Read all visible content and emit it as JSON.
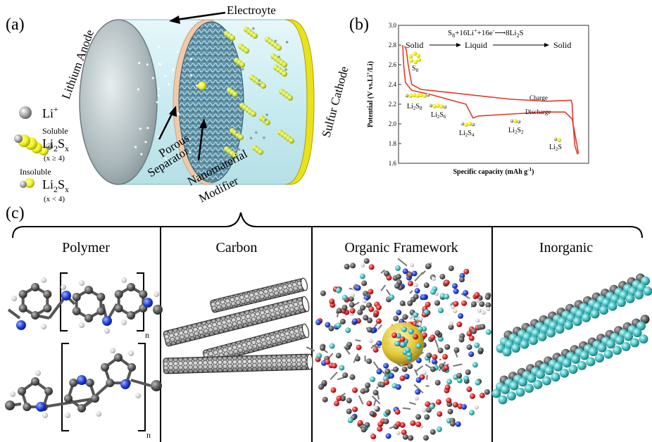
{
  "panel_a": {
    "label": "(a)",
    "electrolyte_label": "Electroyte",
    "anode_label": "Lithium Anode",
    "cathode_label": "Sulfur Cathode",
    "separator_label": [
      "Porous",
      "Separator"
    ],
    "modifier_label": [
      "Nanomaterial",
      "Modifier"
    ],
    "legend": {
      "li_ion": "Li",
      "li_ion_sup": "+",
      "soluble_title": "Soluble",
      "soluble_formula": "Li",
      "soluble_sub": "2",
      "soluble_s": "S",
      "soluble_x": "x",
      "soluble_cond": "(x ≥ 4)",
      "insoluble_title": "Insoluble",
      "insoluble_formula": "Li",
      "insoluble_sub": "2",
      "insoluble_s": "S",
      "insoluble_x": "x",
      "insoluble_cond": "(x < 4)"
    },
    "colors": {
      "electrolyte": "#cdeef2",
      "sulfur": "#c8d92b",
      "cathode": "#e9e21a",
      "li": "#9a9a9a"
    }
  },
  "panel_b": {
    "label": "(b)",
    "reaction": {
      "s": "S",
      "s_sub": "8",
      "mid": "+16Li",
      "li_sup": "+",
      "e": "+16e",
      "e_sup": "-",
      "arrow": "⟶",
      "product": "8Li",
      "prod_sub": "2",
      "prod_s": "S"
    },
    "phases": [
      "Solid",
      "Liquid",
      "Solid"
    ],
    "species": [
      {
        "id": "s8",
        "text": "S",
        "sub": "8"
      },
      {
        "id": "li2s8",
        "text": "Li",
        "sub": "2",
        "text2": "S",
        "sub2": "8"
      },
      {
        "id": "li2s6",
        "text": "Li",
        "sub": "2",
        "text2": "S",
        "sub2": "6"
      },
      {
        "id": "li2s4",
        "text": "Li",
        "sub": "2",
        "text2": "S",
        "sub2": "4"
      },
      {
        "id": "li2s2",
        "text": "Li",
        "sub": "2",
        "text2": "S",
        "sub2": "2"
      },
      {
        "id": "li2s",
        "text": "Li",
        "sub": "2",
        "text2": "S",
        "sub2": ""
      }
    ],
    "chart_data": {
      "type": "line",
      "ylabel_main": "Potential (V vs.Li",
      "ylabel_sup": "+",
      "ylabel_end": "/Li)",
      "xlabel_main": "Specific capacity (mAh g",
      "xlabel_sup": "-1",
      "xlabel_end": ")",
      "ylim": [
        1.6,
        3.0
      ],
      "yticks": [
        "3.0",
        "2.8",
        "2.6",
        "2.4",
        "2.2",
        "2.0",
        "1.8",
        "1.6"
      ],
      "xlim": [
        0,
        1
      ],
      "series": [
        {
          "name": "Charge",
          "color": "#e03a2a",
          "points": [
            [
              0.97,
              1.69
            ],
            [
              0.955,
              1.78
            ],
            [
              0.945,
              2.0
            ],
            [
              0.94,
              2.2
            ],
            [
              0.935,
              2.24
            ],
            [
              0.8,
              2.23
            ],
            [
              0.6,
              2.25
            ],
            [
              0.4,
              2.29
            ],
            [
              0.2,
              2.33
            ],
            [
              0.1,
              2.35
            ],
            [
              0.05,
              2.4
            ],
            [
              0.03,
              2.6
            ],
            [
              0.02,
              2.75
            ],
            [
              0.01,
              2.79
            ]
          ]
        },
        {
          "name": "Discharge",
          "color": "#e03a2a",
          "points": [
            [
              0.0,
              2.8
            ],
            [
              0.005,
              2.6
            ],
            [
              0.015,
              2.42
            ],
            [
              0.05,
              2.34
            ],
            [
              0.15,
              2.3
            ],
            [
              0.25,
              2.25
            ],
            [
              0.35,
              2.2
            ],
            [
              0.39,
              2.06
            ],
            [
              0.42,
              2.08
            ],
            [
              0.6,
              2.1
            ],
            [
              0.8,
              2.12
            ],
            [
              0.9,
              2.12
            ],
            [
              0.94,
              2.05
            ],
            [
              0.955,
              1.9
            ],
            [
              0.975,
              1.7
            ]
          ]
        }
      ]
    }
  },
  "panel_c": {
    "label": "(c)",
    "categories": [
      "Polymer",
      "Carbon",
      "Organic Framework",
      "Inorganic"
    ],
    "polymer_subscript": "n",
    "colors": {
      "carbon": "#555555",
      "nitrogen": "#1f3fd6",
      "hydrogen": "#dddddd",
      "oxygen": "#d42020",
      "teal": "#3fb6b8",
      "gold": "#e8d23a"
    }
  }
}
